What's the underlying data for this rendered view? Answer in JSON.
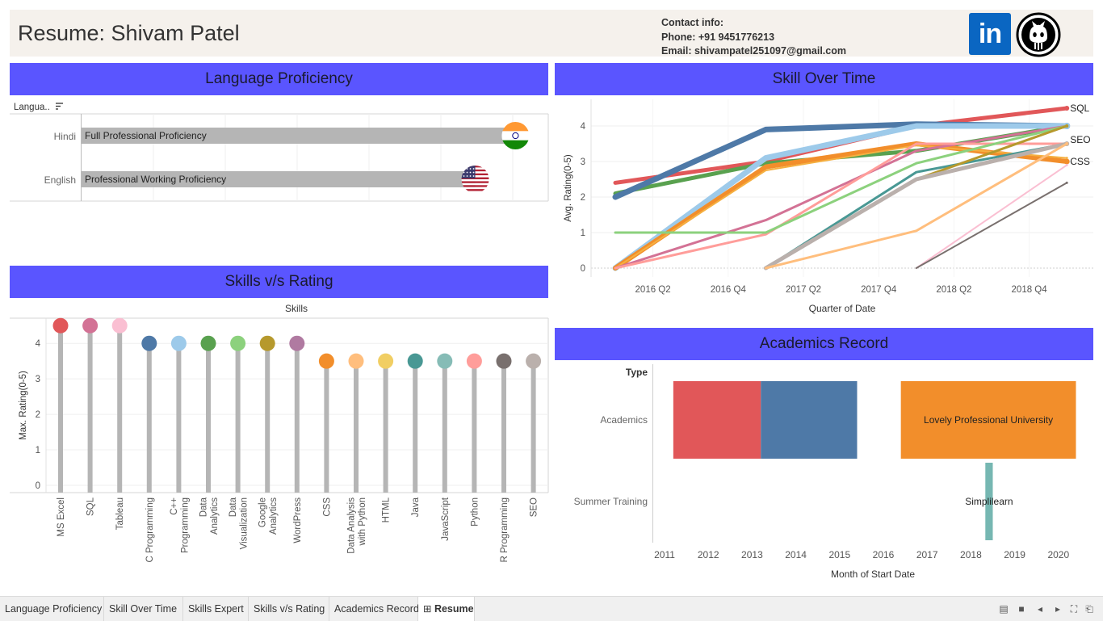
{
  "header": {
    "title": "Resume: Shivam Patel",
    "contact_title": "Contact info:",
    "phone": "Phone: +91 9451776213",
    "email": "Email: shivampatel251097@gmail.com",
    "linkedin_label": "in",
    "linkedin_icon": "linkedin-icon",
    "github_icon": "github-icon"
  },
  "language": {
    "banner": "Language Proficiency",
    "sort_label": "Langua..",
    "rows": [
      {
        "language": "Hindi",
        "proficiency": "Full Professional Proficiency",
        "flag": "india-flag-icon",
        "level": 0.97
      },
      {
        "language": "English",
        "proficiency": "Professional Working Proficiency",
        "flag": "usa-flag-icon",
        "level": 0.88
      }
    ]
  },
  "skill_time": {
    "banner": "Skill Over Time",
    "ylabel": "Avg. Rating(0-5)",
    "xlabel": "Quarter of Date",
    "end_labels": [
      "SQL",
      "SEO",
      "CSS"
    ]
  },
  "skills_rating": {
    "banner": "Skills v/s Rating",
    "top_label": "Skills",
    "ylabel": "Max. Rating(0-5)"
  },
  "academics": {
    "banner": "Academics Record",
    "type_header": "Type",
    "xlabel": "Month of Start Date",
    "rows": [
      "Academics",
      "Summer Training"
    ],
    "x_ticks": [
      "2011",
      "2012",
      "2013",
      "2014",
      "2015",
      "2016",
      "2017",
      "2018",
      "2019",
      "2020"
    ],
    "bars": [
      {
        "row": "Academics",
        "start": 2011.2,
        "end": 2013.2,
        "color": "#e15759",
        "label": ""
      },
      {
        "row": "Academics",
        "start": 2013.2,
        "end": 2015.4,
        "color": "#4e79a7",
        "label": ""
      },
      {
        "row": "Academics",
        "start": 2016.4,
        "end": 2020.4,
        "color": "#f28e2b",
        "label": "Lovely Professional University"
      },
      {
        "row": "Summer Training",
        "start": 2018.33,
        "end": 2018.5,
        "color": "#76b7b2",
        "label": "Simplilearn"
      }
    ]
  },
  "chart_data": [
    {
      "type": "bar",
      "title": "Language Proficiency",
      "categories": [
        "Hindi",
        "English"
      ],
      "labels": [
        "Full Professional Proficiency",
        "Professional Working Proficiency"
      ],
      "values": [
        0.97,
        0.88
      ]
    },
    {
      "type": "line",
      "title": "Skill Over Time",
      "xlabel": "Quarter of Date",
      "ylabel": "Avg. Rating(0-5)",
      "x_ticks": [
        "2016 Q2",
        "2016 Q4",
        "2017 Q2",
        "2017 Q4",
        "2018 Q2",
        "2018 Q4"
      ],
      "y_ticks": [
        0,
        1,
        2,
        3,
        4
      ],
      "ylim": [
        0,
        4.6
      ],
      "series": [
        {
          "name": "SQL",
          "color": "#e15759",
          "width": 5,
          "x": [
            "2016 Q1",
            "2017 Q1",
            "2018 Q1",
            "2019 Q1"
          ],
          "values": [
            2.4,
            3.0,
            4.0,
            4.5
          ]
        },
        {
          "color": "#59a14f",
          "width": 5,
          "x": [
            "2016 Q1",
            "2017 Q1",
            "2018 Q1",
            "2019 Q1"
          ],
          "values": [
            2.1,
            2.95,
            3.3,
            4.0
          ]
        },
        {
          "color": "#4e79a7",
          "width": 7,
          "x": [
            "2016 Q1",
            "2017 Q1",
            "2018 Q1",
            "2019 Q1"
          ],
          "values": [
            2.0,
            3.9,
            4.05,
            4.0
          ]
        },
        {
          "color": "#9dcaea",
          "width": 7,
          "x": [
            "2016 Q1",
            "2017 Q1",
            "2018 Q1",
            "2019 Q1"
          ],
          "values": [
            0,
            3.1,
            4.0,
            4.0
          ]
        },
        {
          "name": "CSS",
          "color": "#f28e2b",
          "width": 6,
          "x": [
            "2016 Q1",
            "2017 Q1",
            "2018 Q1",
            "2019 Q1"
          ],
          "values": [
            0,
            2.85,
            3.5,
            3.0
          ]
        },
        {
          "color": "#f5b041",
          "width": 2,
          "x": [
            "2016 Q1",
            "2017 Q1",
            "2018 Q1",
            "2019 Q1"
          ],
          "values": [
            0,
            2.75,
            3.45,
            3.1
          ]
        },
        {
          "color": "#d37295",
          "width": 3,
          "x": [
            "2016 Q1",
            "2017 Q1",
            "2018 Q1",
            "2019 Q1"
          ],
          "values": [
            0,
            1.35,
            3.3,
            4.0
          ]
        },
        {
          "color": "#ff9d9a",
          "width": 3,
          "x": [
            "2016 Q1",
            "2017 Q1",
            "2018 Q1",
            "2019 Q1"
          ],
          "values": [
            0,
            0.95,
            3.5,
            3.5
          ]
        },
        {
          "color": "#8cd17d",
          "width": 3,
          "x": [
            "2016 Q1",
            "2017 Q1",
            "2018 Q1",
            "2019 Q1"
          ],
          "values": [
            1.0,
            1.0,
            2.95,
            4.0
          ]
        },
        {
          "color": "#499894",
          "width": 3,
          "x": [
            "2017 Q1",
            "2018 Q1",
            "2019 Q1"
          ],
          "values": [
            0,
            2.7,
            3.5
          ]
        },
        {
          "color": "#b6992d",
          "width": 3,
          "x": [
            "2017 Q1",
            "2018 Q1",
            "2019 Q1"
          ],
          "values": [
            0,
            2.5,
            4.0
          ]
        },
        {
          "color": "#bab0ac",
          "width": 5,
          "x": [
            "2017 Q1",
            "2018 Q1",
            "2019 Q1"
          ],
          "values": [
            0,
            2.5,
            3.5
          ]
        },
        {
          "name": "SEO",
          "color": "#ffbe7d",
          "width": 3,
          "x": [
            "2017 Q1",
            "2018 Q1",
            "2019 Q1"
          ],
          "values": [
            0,
            1.05,
            3.5
          ]
        },
        {
          "color": "#fabfd2",
          "width": 2,
          "x": [
            "2018 Q1",
            "2019 Q1"
          ],
          "values": [
            0,
            2.9
          ]
        },
        {
          "color": "#79706e",
          "width": 2,
          "x": [
            "2018 Q1",
            "2019 Q1"
          ],
          "values": [
            0,
            2.4
          ]
        }
      ]
    },
    {
      "type": "scatter",
      "title": "Skills v/s Rating",
      "xlabel": "Skills",
      "ylabel": "Max. Rating(0-5)",
      "y_ticks": [
        0,
        1,
        2,
        3,
        4
      ],
      "ylim": [
        0,
        4.9
      ],
      "categories": [
        "MS Excel",
        "SQL",
        "Tableau",
        "C Programming",
        "C++ Programming",
        "Data Analytics",
        "Data Visualization",
        "Google Analytics",
        "WordPress",
        "CSS",
        "Data Analysis with Python",
        "HTML",
        "Java",
        "JavaScript",
        "Python",
        "R Programming",
        "SEO"
      ],
      "values": [
        4.5,
        4.5,
        4.5,
        4,
        4,
        4,
        4,
        4,
        4,
        3.5,
        3.5,
        3.5,
        3.5,
        3.5,
        3.5,
        3.5,
        3.5
      ],
      "colors": [
        "#e15759",
        "#d37295",
        "#fabfd2",
        "#4e79a7",
        "#9dcaea",
        "#59a14f",
        "#8cd17d",
        "#b6992d",
        "#b07aa1",
        "#f28e2b",
        "#ffbe7d",
        "#f1ce63",
        "#499894",
        "#86bcb6",
        "#ff9d9a",
        "#79706e",
        "#bab0ac"
      ]
    }
  ],
  "tabs": [
    {
      "label": "Language Proficiency",
      "active": false
    },
    {
      "label": "Skill Over Time",
      "active": false
    },
    {
      "label": "Skills Expert",
      "active": false
    },
    {
      "label": "Skills v/s Rating",
      "active": false
    },
    {
      "label": "Academics Record",
      "active": false
    },
    {
      "label": "Resume",
      "active": true,
      "icon": "grid-icon"
    }
  ],
  "nav_icons": [
    "view-toggle-icon",
    "presentation-icon",
    "prev-icon",
    "next-icon",
    "fullscreen-icon",
    "share-icon"
  ]
}
